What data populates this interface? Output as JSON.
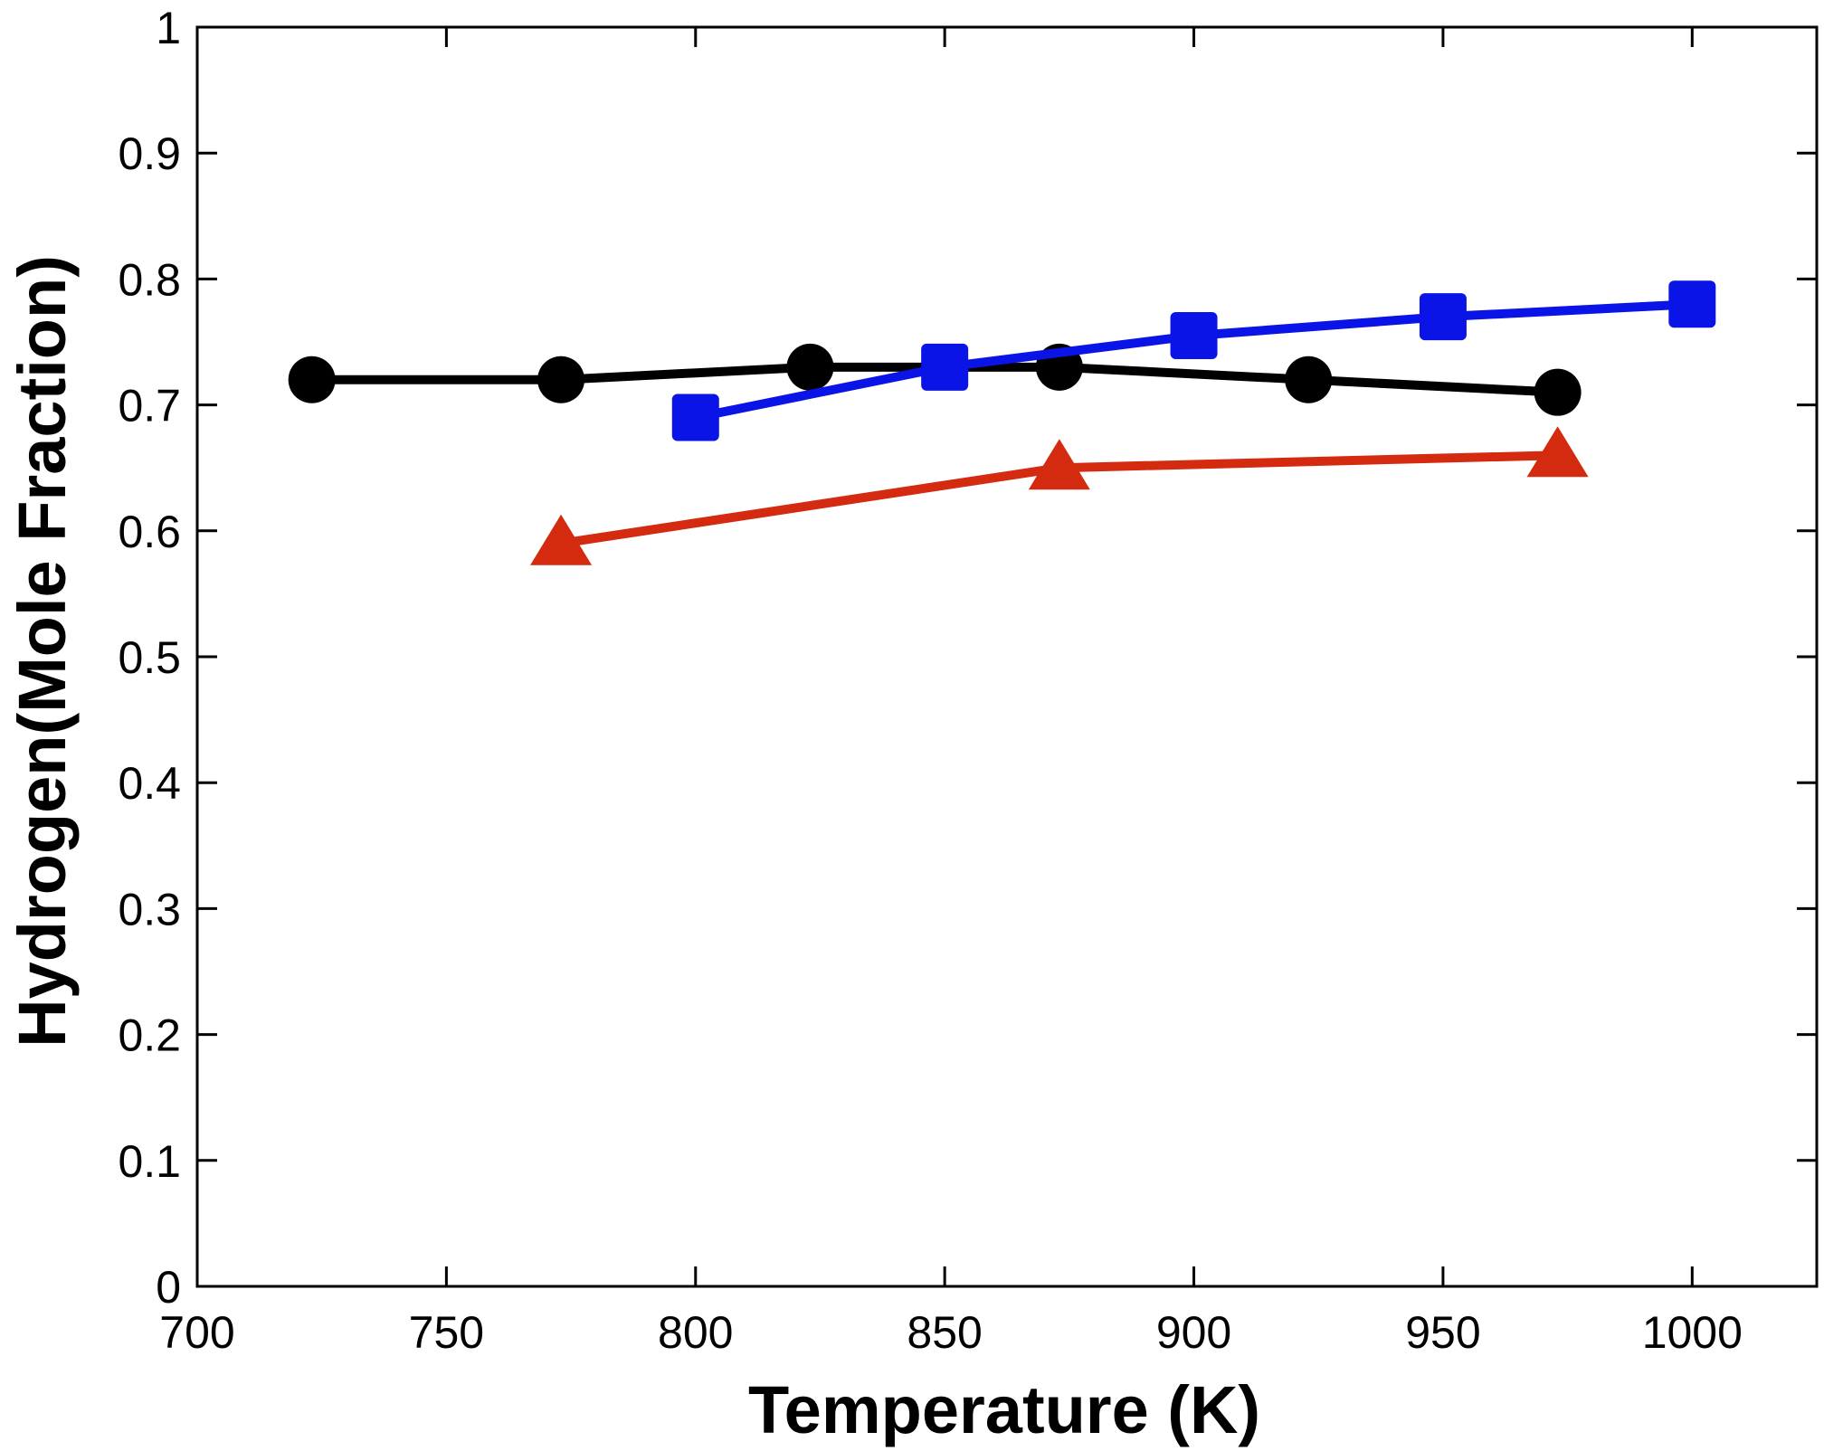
{
  "chart_data": {
    "type": "line",
    "title": "",
    "xlabel": "Temperature (K)",
    "ylabel": "Hydrogen(Mole Fraction)",
    "xlim": [
      700,
      1025
    ],
    "ylim": [
      0,
      1
    ],
    "xticks": [
      700,
      750,
      800,
      850,
      900,
      950,
      1000
    ],
    "yticks": [
      0,
      0.1,
      0.2,
      0.3,
      0.4,
      0.5,
      0.6,
      0.7,
      0.8,
      0.9,
      1
    ],
    "ytick_labels": [
      "0",
      "0.1",
      "0.2",
      "0.3",
      "0.4",
      "0.5",
      "0.6",
      "0.7",
      "0.8",
      "0.9",
      "1"
    ],
    "grid": false,
    "legend": "none",
    "series": [
      {
        "marker": "circle",
        "color": "#000000",
        "x": [
          723,
          773,
          823,
          873,
          923,
          973
        ],
        "y": [
          0.72,
          0.72,
          0.73,
          0.73,
          0.72,
          0.71
        ]
      },
      {
        "marker": "square",
        "color": "#0a14e6",
        "x": [
          800,
          850,
          900,
          950,
          1000
        ],
        "y": [
          0.69,
          0.73,
          0.755,
          0.77,
          0.78
        ]
      },
      {
        "marker": "triangle",
        "color": "#d42a10",
        "x": [
          773,
          873,
          973
        ],
        "y": [
          0.59,
          0.65,
          0.66
        ]
      }
    ]
  }
}
